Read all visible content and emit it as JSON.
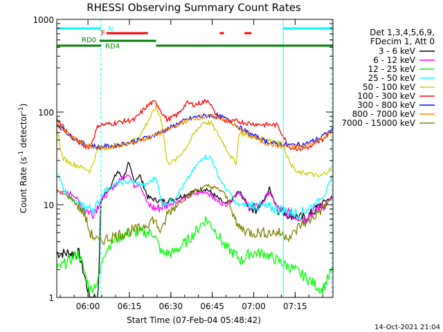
{
  "chart_data": {
    "type": "line",
    "title": "RHESSI Observing Summary Count Rates",
    "xlabel": "Start Time (07-Feb-04 05:48:42)",
    "ylabel": "Count Rate (s",
    "ylabel_sup1": "-1",
    "ylabel_mid": " detector",
    "ylabel_sup2": "-1",
    "ylabel_end": ")",
    "y_scale": "log",
    "ylim": [
      1,
      1000
    ],
    "xlim_min": [
      0,
      100
    ],
    "ytick_labels": [
      "1",
      "10",
      "100",
      "1000"
    ],
    "xticks": [
      {
        "label": "06:00",
        "t": 11.3
      },
      {
        "label": "06:15",
        "t": 26.3
      },
      {
        "label": "06:30",
        "t": 41.3
      },
      {
        "label": "06:45",
        "t": 56.3
      },
      {
        "label": "07:00",
        "t": 71.3
      },
      {
        "label": "07:15",
        "t": 86.3
      }
    ],
    "legend_header": [
      "Det 1,3,4,5,6,9,",
      "FDecim 1, Att 0"
    ],
    "legend_position": "right",
    "timestamp": "14-Oct-2021 21:04",
    "series": [
      {
        "name": "3 - 6 keV",
        "color": "#000000",
        "points": [
          [
            0,
            3
          ],
          [
            8,
            3
          ],
          [
            12,
            1
          ],
          [
            15,
            1
          ],
          [
            16,
            11
          ],
          [
            20,
            17
          ],
          [
            22,
            23
          ],
          [
            24,
            19
          ],
          [
            26,
            28
          ],
          [
            28,
            18
          ],
          [
            30,
            21
          ],
          [
            33,
            12
          ],
          [
            37,
            11
          ],
          [
            40,
            11
          ],
          [
            44,
            12
          ],
          [
            50,
            14
          ],
          [
            54,
            15
          ],
          [
            58,
            12
          ],
          [
            61,
            10
          ],
          [
            63,
            11
          ],
          [
            66,
            14
          ],
          [
            69,
            10
          ],
          [
            72,
            9
          ],
          [
            75,
            11
          ],
          [
            77,
            15
          ],
          [
            80,
            9
          ],
          [
            84,
            8
          ],
          [
            90,
            7
          ],
          [
            94,
            9
          ],
          [
            97,
            11
          ],
          [
            100,
            12
          ]
        ]
      },
      {
        "name": "6 - 12 keV",
        "color": "#ff00ff",
        "points": [
          [
            0,
            14
          ],
          [
            6,
            13
          ],
          [
            10,
            9
          ],
          [
            13,
            8
          ],
          [
            16,
            11
          ],
          [
            20,
            15
          ],
          [
            24,
            20
          ],
          [
            26,
            22
          ],
          [
            28,
            16
          ],
          [
            30,
            17
          ],
          [
            33,
            10
          ],
          [
            36,
            9
          ],
          [
            40,
            10
          ],
          [
            44,
            11
          ],
          [
            50,
            13
          ],
          [
            54,
            14
          ],
          [
            58,
            11
          ],
          [
            61,
            10
          ],
          [
            63,
            11
          ],
          [
            66,
            14
          ],
          [
            69,
            10
          ],
          [
            72,
            9
          ],
          [
            75,
            11
          ],
          [
            77,
            14
          ],
          [
            80,
            9
          ],
          [
            84,
            8
          ],
          [
            90,
            7
          ],
          [
            94,
            9
          ],
          [
            97,
            10
          ],
          [
            100,
            12
          ]
        ]
      },
      {
        "name": "12 - 25 keV",
        "color": "#00ff00",
        "points": [
          [
            0,
            2
          ],
          [
            8,
            3
          ],
          [
            12,
            1.2
          ],
          [
            15,
            1.5
          ],
          [
            17,
            3
          ],
          [
            20,
            4
          ],
          [
            26,
            5
          ],
          [
            35,
            5
          ],
          [
            38,
            3
          ],
          [
            42,
            3
          ],
          [
            47,
            4
          ],
          [
            50,
            5
          ],
          [
            52,
            6
          ],
          [
            54,
            7
          ],
          [
            56,
            6
          ],
          [
            58,
            5
          ],
          [
            61,
            3.5
          ],
          [
            64,
            3
          ],
          [
            67,
            2.5
          ],
          [
            70,
            3
          ],
          [
            75,
            3
          ],
          [
            80,
            2.5
          ],
          [
            86,
            2
          ],
          [
            92,
            1.5
          ],
          [
            96,
            1.2
          ],
          [
            100,
            2
          ]
        ]
      },
      {
        "name": "25 - 50 keV",
        "color": "#00ffff",
        "points": [
          [
            0,
            22
          ],
          [
            3,
            14
          ],
          [
            6,
            11
          ],
          [
            9,
            10
          ],
          [
            12,
            9
          ],
          [
            15,
            10
          ],
          [
            17,
            14
          ],
          [
            22,
            17
          ],
          [
            27,
            18
          ],
          [
            32,
            16
          ],
          [
            36,
            20
          ],
          [
            38,
            10
          ],
          [
            42,
            11
          ],
          [
            47,
            18
          ],
          [
            50,
            25
          ],
          [
            53,
            33
          ],
          [
            56,
            32
          ],
          [
            58,
            22
          ],
          [
            61,
            15
          ],
          [
            63,
            13
          ],
          [
            65,
            10
          ],
          [
            70,
            10
          ],
          [
            80,
            9
          ],
          [
            88,
            8
          ],
          [
            93,
            10
          ],
          [
            97,
            13
          ],
          [
            100,
            20
          ]
        ]
      },
      {
        "name": "50 - 100 keV",
        "color": "#cccc00",
        "points": [
          [
            0,
            68
          ],
          [
            2,
            32
          ],
          [
            5,
            28
          ],
          [
            8,
            26
          ],
          [
            11,
            24
          ],
          [
            12,
            23
          ],
          [
            15,
            40
          ],
          [
            20,
            42
          ],
          [
            26,
            46
          ],
          [
            30,
            55
          ],
          [
            34,
            90
          ],
          [
            36,
            115
          ],
          [
            38,
            80
          ],
          [
            40,
            28
          ],
          [
            43,
            30
          ],
          [
            47,
            42
          ],
          [
            50,
            60
          ],
          [
            53,
            78
          ],
          [
            56,
            75
          ],
          [
            60,
            48
          ],
          [
            63,
            33
          ],
          [
            65,
            28
          ],
          [
            66,
            60
          ],
          [
            70,
            55
          ],
          [
            74,
            52
          ],
          [
            78,
            50
          ],
          [
            82,
            45
          ],
          [
            84,
            30
          ],
          [
            87,
            22
          ],
          [
            91,
            22
          ],
          [
            95,
            20
          ],
          [
            100,
            25
          ]
        ]
      },
      {
        "name": "100 - 300 keV",
        "color": "#ff0000",
        "points": [
          [
            0,
            85
          ],
          [
            5,
            55
          ],
          [
            10,
            43
          ],
          [
            12,
            42
          ],
          [
            15,
            72
          ],
          [
            20,
            75
          ],
          [
            25,
            80
          ],
          [
            28,
            82
          ],
          [
            32,
            110
          ],
          [
            34,
            125
          ],
          [
            36,
            128
          ],
          [
            38,
            100
          ],
          [
            40,
            82
          ],
          [
            44,
            95
          ],
          [
            47,
            125
          ],
          [
            50,
            120
          ],
          [
            53,
            128
          ],
          [
            55,
            135
          ],
          [
            57,
            100
          ],
          [
            60,
            82
          ],
          [
            63,
            78
          ],
          [
            65,
            80
          ],
          [
            70,
            75
          ],
          [
            75,
            73
          ],
          [
            78,
            73
          ],
          [
            80,
            72
          ],
          [
            84,
            42
          ],
          [
            88,
            40
          ],
          [
            92,
            42
          ],
          [
            96,
            50
          ],
          [
            100,
            65
          ]
        ]
      },
      {
        "name": "300 - 800 keV",
        "color": "#0000ff",
        "points": [
          [
            0,
            75
          ],
          [
            5,
            55
          ],
          [
            10,
            45
          ],
          [
            15,
            42
          ],
          [
            20,
            43
          ],
          [
            25,
            46
          ],
          [
            30,
            50
          ],
          [
            35,
            56
          ],
          [
            40,
            65
          ],
          [
            45,
            78
          ],
          [
            50,
            88
          ],
          [
            55,
            92
          ],
          [
            60,
            88
          ],
          [
            65,
            72
          ],
          [
            70,
            58
          ],
          [
            75,
            49
          ],
          [
            80,
            45
          ],
          [
            85,
            44
          ],
          [
            90,
            45
          ],
          [
            95,
            52
          ],
          [
            100,
            65
          ]
        ]
      },
      {
        "name": "800 - 7000 keV",
        "color": "#ff8800",
        "points": [
          [
            0,
            75
          ],
          [
            5,
            54
          ],
          [
            10,
            44
          ],
          [
            15,
            41
          ],
          [
            20,
            42
          ],
          [
            25,
            45
          ],
          [
            30,
            49
          ],
          [
            35,
            55
          ],
          [
            40,
            64
          ],
          [
            45,
            76
          ],
          [
            50,
            86
          ],
          [
            55,
            90
          ],
          [
            60,
            86
          ],
          [
            65,
            70
          ],
          [
            70,
            56
          ],
          [
            75,
            47
          ],
          [
            80,
            43
          ],
          [
            85,
            42
          ],
          [
            90,
            43
          ],
          [
            95,
            50
          ],
          [
            100,
            62
          ]
        ]
      },
      {
        "name": "7000 - 15000 keV",
        "color": "#808000",
        "points": [
          [
            0,
            14
          ],
          [
            5,
            12
          ],
          [
            10,
            8
          ],
          [
            12,
            5
          ],
          [
            15,
            4
          ],
          [
            20,
            4.5
          ],
          [
            25,
            5
          ],
          [
            30,
            5.5
          ],
          [
            35,
            7
          ],
          [
            38,
            5
          ],
          [
            40,
            8
          ],
          [
            45,
            11
          ],
          [
            50,
            14
          ],
          [
            55,
            16
          ],
          [
            60,
            14
          ],
          [
            63,
            10
          ],
          [
            65,
            6
          ],
          [
            70,
            5
          ],
          [
            75,
            5
          ],
          [
            80,
            5
          ],
          [
            85,
            4.5
          ],
          [
            88,
            6
          ],
          [
            92,
            7
          ],
          [
            96,
            9
          ],
          [
            100,
            12
          ]
        ]
      }
    ],
    "annotations": [
      {
        "label": "N",
        "color": "#00ffff",
        "segments": [
          [
            0,
            16
          ],
          [
            82,
            100
          ]
        ]
      },
      {
        "label": "F",
        "color": "#ff0000",
        "segments": [
          [
            18,
            33
          ],
          [
            59,
            60.5
          ],
          [
            68,
            70.5
          ]
        ]
      },
      {
        "label": "RD0",
        "color": "#008000",
        "segments": [
          [
            15.5,
            36
          ]
        ]
      },
      {
        "label": "RD4",
        "color": "#008000",
        "segments": [
          [
            0,
            16
          ],
          [
            36,
            62
          ],
          [
            62,
            84
          ],
          [
            84,
            100
          ]
        ]
      }
    ],
    "vlines": [
      {
        "t": 16,
        "color": "#00ffff",
        "style": "dashed"
      },
      {
        "t": 0,
        "color": "#00ffff",
        "style": "solid"
      },
      {
        "t": 82,
        "color": "#00ffff",
        "style": "solid"
      },
      {
        "t": 99.5,
        "color": "#00ffff",
        "style": "dashed"
      }
    ]
  }
}
